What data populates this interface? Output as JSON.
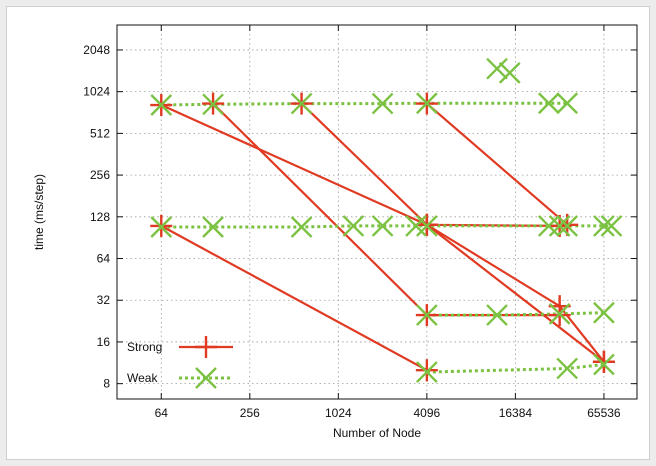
{
  "chart_data": {
    "type": "line",
    "title": "",
    "xlabel": "Number of Node",
    "ylabel": "time (ms/step)",
    "x_scale": "log2",
    "y_scale": "log2",
    "xlim": [
      32,
      110000
    ],
    "ylim": [
      6.2,
      3100
    ],
    "x_ticks": [
      64,
      256,
      1024,
      4096,
      16384,
      65536
    ],
    "x_tick_labels": [
      "64",
      "256",
      "1024",
      "4096",
      "16384",
      "65536"
    ],
    "y_ticks": [
      8,
      16,
      32,
      64,
      128,
      256,
      512,
      1024,
      2048
    ],
    "y_tick_labels": [
      "8",
      "16",
      "32",
      "64",
      "128",
      "256",
      "512",
      "1024",
      "2048"
    ],
    "grid": true,
    "legend_position": "bottom-left",
    "legend": [
      {
        "label": "Strong",
        "series": "Strong"
      },
      {
        "label": "Weak",
        "series": "Weak"
      }
    ],
    "colors": {
      "Strong": "#e03a22",
      "Weak": "#7cc242"
    },
    "series": [
      {
        "name": "Strong",
        "style": "solid",
        "marker": "plus",
        "lines": [
          [
            [
              64,
              820
            ],
            [
              4096,
              112
            ],
            [
              32768,
              110
            ]
          ],
          [
            [
              64,
              110
            ],
            [
              4096,
              10
            ]
          ],
          [
            [
              144,
              840
            ],
            [
              4096,
              25
            ],
            [
              32768,
              25
            ]
          ],
          [
            [
              576,
              840
            ],
            [
              4096,
              112
            ],
            [
              32768,
              29
            ],
            [
              65536,
              11.5
            ]
          ],
          [
            [
              4096,
              840
            ],
            [
              36864,
              112
            ]
          ],
          [
            [
              4096,
              112
            ],
            [
              65536,
              11.5
            ]
          ]
        ]
      },
      {
        "name": "Weak",
        "style": "dotted",
        "marker": "x",
        "lines": [
          [
            [
              64,
              820
            ],
            [
              144,
              830
            ],
            [
              576,
              840
            ],
            [
              2048,
              840
            ],
            [
              4096,
              845
            ],
            [
              27648,
              845
            ],
            [
              36864,
              845
            ]
          ],
          [
            [
              64,
              108
            ],
            [
              144,
              108
            ],
            [
              576,
              108
            ],
            [
              1296,
              110
            ],
            [
              2048,
              110
            ],
            [
              3456,
              110
            ],
            [
              4096,
              110
            ],
            [
              27648,
              110
            ],
            [
              32768,
              110
            ],
            [
              36864,
              110
            ],
            [
              65536,
              110
            ],
            [
              73728,
              110
            ]
          ],
          [
            [
              4096,
              25
            ],
            [
              12288,
              25
            ],
            [
              32768,
              25.5
            ],
            [
              65536,
              26
            ]
          ],
          [
            [
              4096,
              9.7
            ],
            [
              36864,
              10.3
            ],
            [
              65536,
              11
            ]
          ]
        ],
        "extra_points": [
          [
            12288,
            1500
          ],
          [
            15000,
            1400
          ]
        ]
      }
    ]
  }
}
